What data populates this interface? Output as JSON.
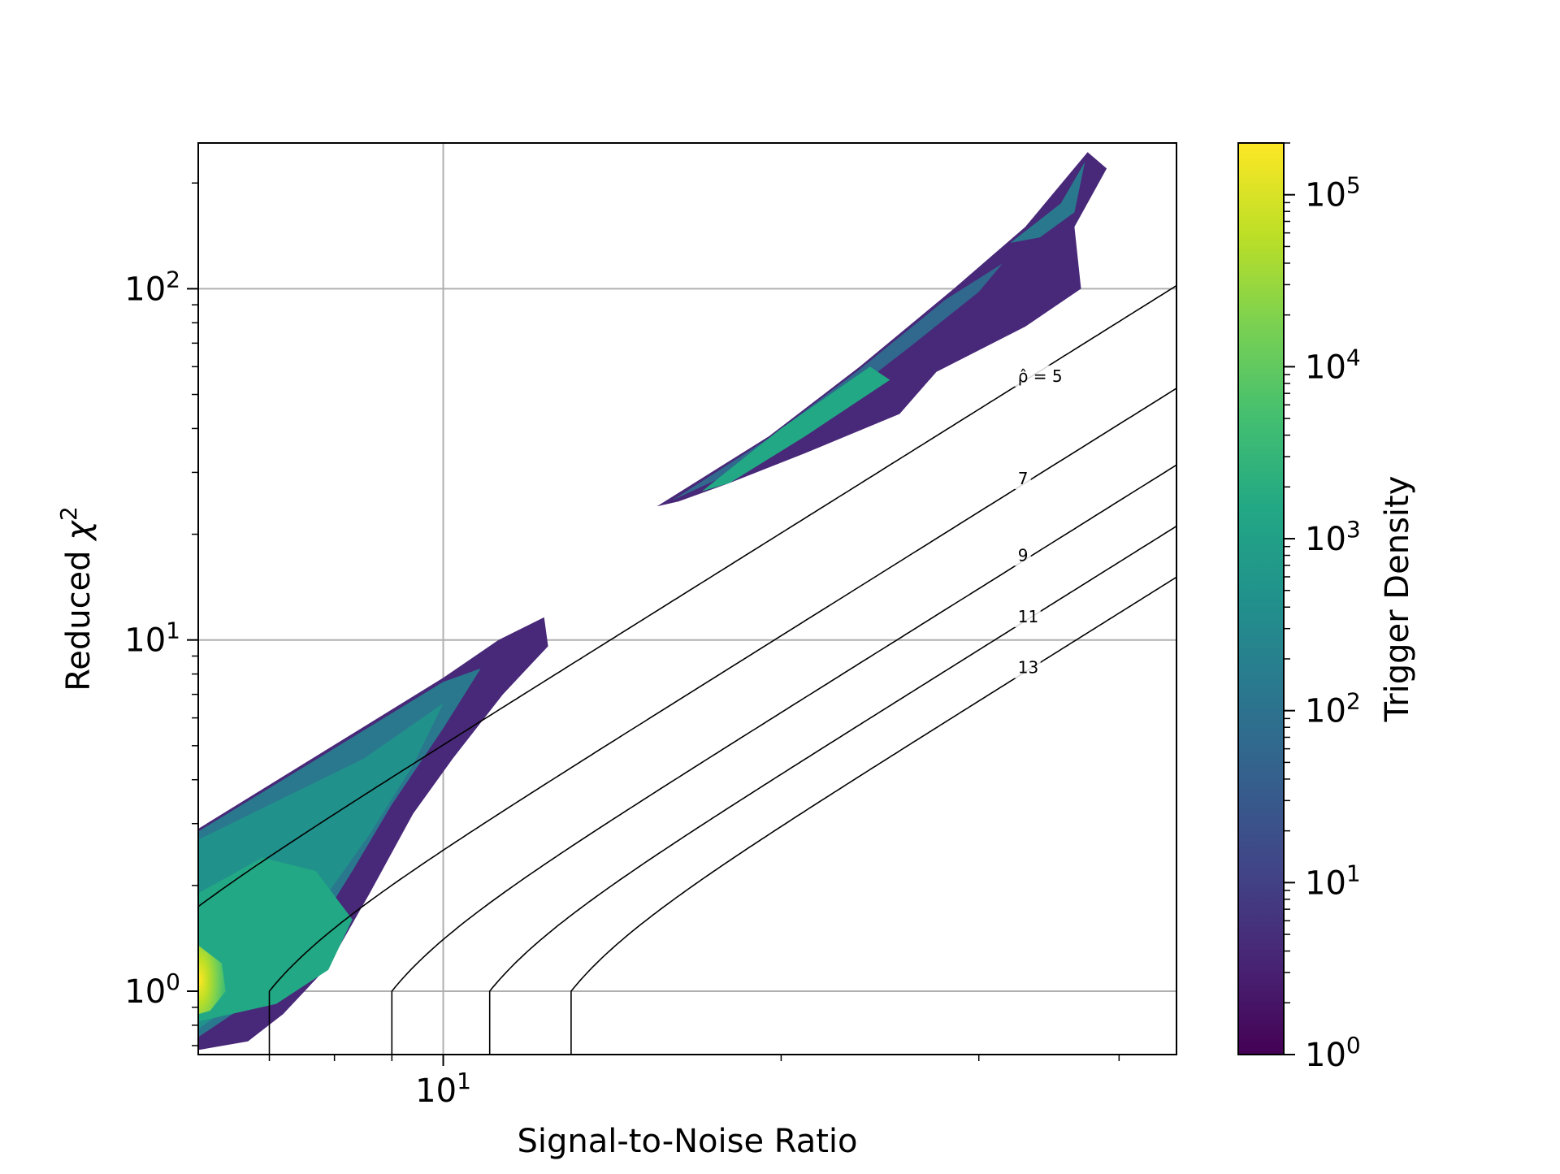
{
  "chart_data": {
    "type": "heatmap",
    "xlabel": "Signal-to-Noise Ratio",
    "ylabel_text": "Reduced ",
    "ylabel_symbol": "χ",
    "ylabel_exp": "2",
    "xscale": "log",
    "yscale": "log",
    "xlim": [
      6.05,
      45
    ],
    "ylim": [
      0.66,
      260
    ],
    "grid": true,
    "x_major_ticks": [
      {
        "value": 10,
        "base": "10",
        "exp": "1"
      }
    ],
    "y_major_ticks": [
      {
        "value": 1,
        "base": "10",
        "exp": "0"
      },
      {
        "value": 10,
        "base": "10",
        "exp": "1"
      },
      {
        "value": 100,
        "base": "10",
        "exp": "2"
      }
    ],
    "x_minor_ticks": [
      7,
      8,
      9,
      20,
      30,
      40
    ],
    "colorbar": {
      "label": "Trigger Density",
      "scale": "log",
      "range": [
        1,
        200000
      ],
      "colormap": "viridis",
      "ticks": [
        {
          "value": 1,
          "base": "10",
          "exp": "0"
        },
        {
          "value": 10,
          "base": "10",
          "exp": "1"
        },
        {
          "value": 100,
          "base": "10",
          "exp": "2"
        },
        {
          "value": 1000,
          "base": "10",
          "exp": "3"
        },
        {
          "value": 10000,
          "base": "10",
          "exp": "4"
        },
        {
          "value": 100000,
          "base": "10",
          "exp": "5"
        }
      ]
    },
    "contours": {
      "description_hidden": false,
      "levels": [
        {
          "rho": 5,
          "label": "ρ̂ = 5",
          "label_at_snr": 32.5,
          "start_snr": 6.0
        },
        {
          "rho": 7,
          "label": "7",
          "label_at_snr": 32.5,
          "start_snr": 7.0
        },
        {
          "rho": 9,
          "label": "9",
          "label_at_snr": 32.5,
          "start_snr": 9.0
        },
        {
          "rho": 11,
          "label": "11",
          "label_at_snr": 32.5,
          "start_snr": 11.0
        },
        {
          "rho": 13,
          "label": "13",
          "label_at_snr": 32.5,
          "start_snr": 13.0
        }
      ]
    },
    "density_regions": [
      {
        "name": "main-cluster",
        "outline": [
          [
            6.05,
            2.9
          ],
          [
            10.0,
            7.8
          ],
          [
            11.2,
            10.0
          ],
          [
            12.3,
            11.6
          ],
          [
            12.4,
            9.6
          ],
          [
            11.3,
            7.0
          ],
          [
            10.2,
            4.6
          ],
          [
            9.4,
            3.2
          ],
          [
            8.6,
            1.9
          ],
          [
            7.9,
            1.18
          ],
          [
            7.2,
            0.86
          ],
          [
            6.7,
            0.72
          ],
          [
            6.05,
            0.68
          ]
        ],
        "core": [
          [
            6.05,
            1.9
          ],
          [
            6.9,
            2.4
          ],
          [
            7.7,
            2.2
          ],
          [
            8.3,
            1.6
          ],
          [
            7.9,
            1.15
          ],
          [
            7.1,
            0.92
          ],
          [
            6.05,
            0.82
          ]
        ],
        "hot": [
          [
            6.05,
            1.35
          ],
          [
            6.35,
            1.2
          ],
          [
            6.4,
            1.0
          ],
          [
            6.2,
            0.88
          ],
          [
            6.05,
            0.86
          ]
        ]
      },
      {
        "name": "high-chi-cluster",
        "outline": [
          [
            15.5,
            24.0
          ],
          [
            19.5,
            38.0
          ],
          [
            23.5,
            60.0
          ],
          [
            28.5,
            100.0
          ],
          [
            33.0,
            150.0
          ],
          [
            37.5,
            245.0
          ],
          [
            39.0,
            220.0
          ],
          [
            36.5,
            150.0
          ],
          [
            37.0,
            100.0
          ],
          [
            33.0,
            78.0
          ],
          [
            27.5,
            58.0
          ],
          [
            25.5,
            44.0
          ],
          [
            21.0,
            34.0
          ],
          [
            18.0,
            28.0
          ],
          [
            16.2,
            24.8
          ]
        ],
        "core": [
          [
            17.0,
            26.5
          ],
          [
            20.0,
            40.0
          ],
          [
            24.0,
            60.0
          ],
          [
            25.0,
            55.0
          ],
          [
            21.0,
            38.0
          ],
          [
            18.0,
            28.0
          ]
        ]
      }
    ]
  }
}
